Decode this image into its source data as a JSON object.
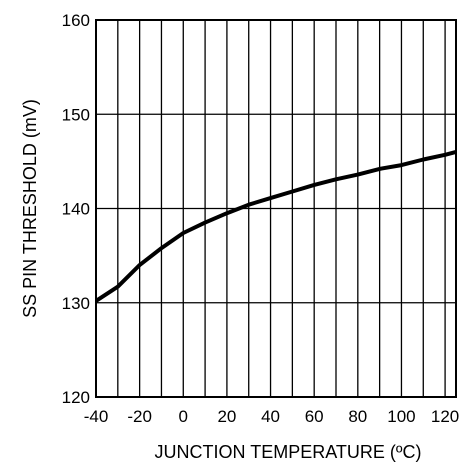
{
  "chart_data": {
    "type": "line",
    "title": "",
    "xlabel": "JUNCTION TEMPERATURE (ºC)",
    "ylabel": "SS PIN THRESHOLD (mV)",
    "xlim": [
      -40,
      125
    ],
    "ylim": [
      120,
      160
    ],
    "x_ticks": [
      -40,
      -20,
      0,
      20,
      40,
      60,
      80,
      100,
      120
    ],
    "y_ticks": [
      120,
      130,
      140,
      150,
      160
    ],
    "x_tick_labels": [
      "-40",
      "-20",
      "0",
      "20",
      "40",
      "60",
      "80",
      "100",
      "120"
    ],
    "y_tick_labels": [
      "120",
      "130",
      "140",
      "150",
      "160"
    ],
    "grid": true,
    "x_gridlines": [
      -30,
      -20,
      -10,
      0,
      10,
      20,
      30,
      40,
      50,
      60,
      70,
      80,
      90,
      100,
      110,
      120
    ],
    "y_gridlines": [
      130,
      140,
      150
    ],
    "legend": "none",
    "series": [
      {
        "color": "#000000",
        "x": [
          -40,
          -30,
          -20,
          -10,
          0,
          10,
          20,
          30,
          40,
          50,
          60,
          70,
          80,
          90,
          100,
          110,
          120,
          125
        ],
        "y": [
          130.2,
          131.7,
          134.0,
          135.8,
          137.4,
          138.5,
          139.5,
          140.4,
          141.1,
          141.8,
          142.5,
          143.1,
          143.6,
          144.2,
          144.6,
          145.2,
          145.7,
          146.0
        ]
      }
    ]
  }
}
